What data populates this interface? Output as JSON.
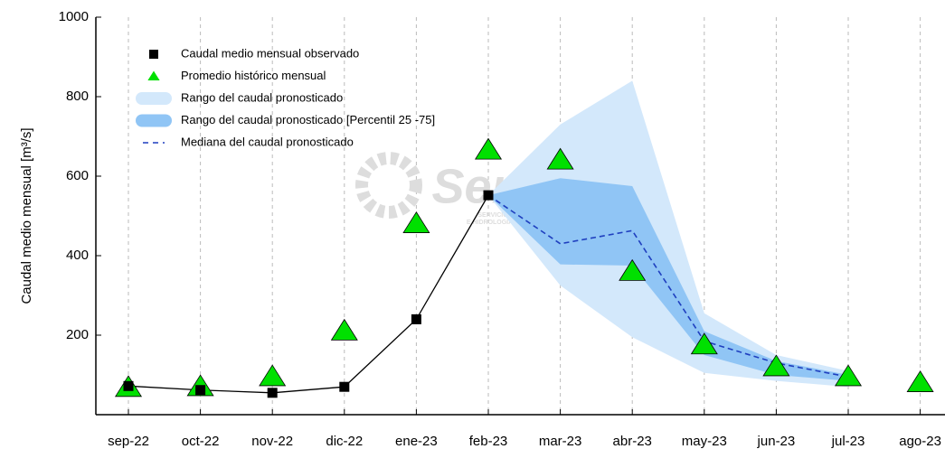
{
  "chart_data": {
    "type": "line",
    "y_label": "Caudal medio mensual  [m³/s]",
    "watermark": [
      "Senamhi",
      "SERVICIO NACIONAL DE METEOROLOGIA",
      "E HIDROLOGIA DEL PERU"
    ],
    "categories": [
      "sep-22",
      "oct-22",
      "nov-22",
      "dic-22",
      "ene-23",
      "feb-23",
      "mar-23",
      "abr-23",
      "may-23",
      "jun-23",
      "jul-23",
      "ago-23"
    ],
    "ylim": [
      0,
      1000
    ],
    "yticks": [
      200,
      400,
      600,
      800,
      1000
    ],
    "grid": true,
    "legend": "upper left",
    "bands": [
      {
        "name": "Rango del caudal pronosticado",
        "color": "#d3e8fb",
        "lower": [
          null,
          null,
          null,
          null,
          null,
          552,
          325,
          195,
          105,
          85,
          70,
          null
        ],
        "upper": [
          null,
          null,
          null,
          null,
          null,
          552,
          730,
          840,
          255,
          150,
          110,
          null
        ]
      },
      {
        "name": "Rango del caudal pronosticado [Percentil 25 -75]",
        "color": "#90c5f5",
        "lower": [
          null,
          null,
          null,
          null,
          null,
          552,
          378,
          375,
          150,
          100,
          85,
          null
        ],
        "upper": [
          null,
          null,
          null,
          null,
          null,
          552,
          595,
          575,
          210,
          135,
          100,
          null
        ]
      }
    ],
    "series": [
      {
        "name": "Caudal medio mensual observado",
        "color": "#000000",
        "marker": "square",
        "values": [
          72,
          62,
          55,
          70,
          240,
          552,
          null,
          null,
          null,
          null,
          null,
          null
        ]
      },
      {
        "name": "Promedio histórico mensual",
        "color": "#00e000",
        "marker": "triangle",
        "values": [
          68,
          70,
          95,
          210,
          480,
          665,
          640,
          360,
          175,
          120,
          95,
          80
        ]
      },
      {
        "name": "Mediana del caudal pronosticado",
        "color": "#1f3fbf",
        "marker": "dash",
        "values": [
          null,
          null,
          null,
          null,
          null,
          552,
          430,
          463,
          185,
          130,
          95,
          null
        ]
      }
    ]
  }
}
